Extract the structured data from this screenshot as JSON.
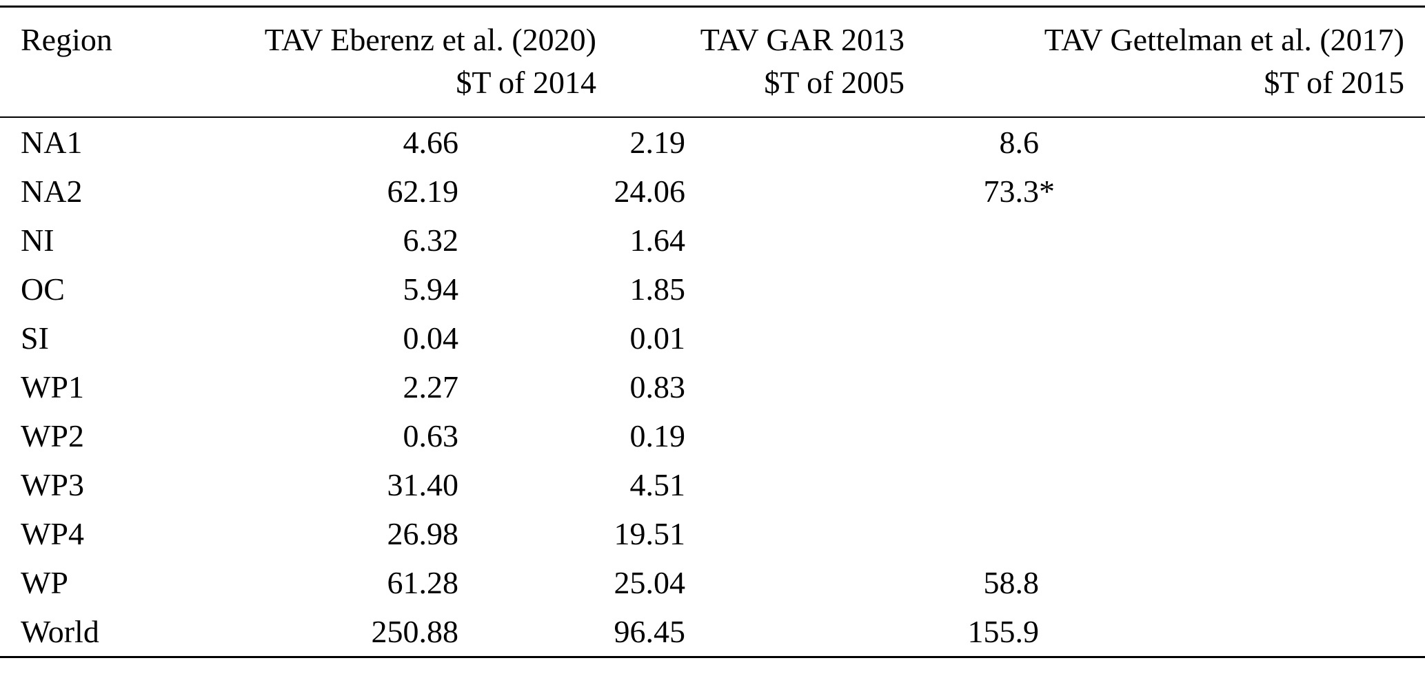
{
  "table": {
    "columns": [
      {
        "title": "Region",
        "unit": ""
      },
      {
        "title": "TAV Eberenz et al. (2020)",
        "unit": "$T of 2014"
      },
      {
        "title": "TAV GAR 2013",
        "unit": "$T of 2005"
      },
      {
        "title": "TAV Gettelman et al. (2017)",
        "unit": "$T of 2015"
      }
    ],
    "rows": [
      {
        "region": "NA1",
        "tav_eberenz": "4.66",
        "tav_gar": "2.19",
        "tav_gettelman": "8.6"
      },
      {
        "region": "NA2",
        "tav_eberenz": "62.19",
        "tav_gar": "24.06",
        "tav_gettelman": "73.3*"
      },
      {
        "region": "NI",
        "tav_eberenz": "6.32",
        "tav_gar": "1.64",
        "tav_gettelman": ""
      },
      {
        "region": "OC",
        "tav_eberenz": "5.94",
        "tav_gar": "1.85",
        "tav_gettelman": ""
      },
      {
        "region": "SI",
        "tav_eberenz": "0.04",
        "tav_gar": "0.01",
        "tav_gettelman": ""
      },
      {
        "region": "WP1",
        "tav_eberenz": "2.27",
        "tav_gar": "0.83",
        "tav_gettelman": ""
      },
      {
        "region": "WP2",
        "tav_eberenz": "0.63",
        "tav_gar": "0.19",
        "tav_gettelman": ""
      },
      {
        "region": "WP3",
        "tav_eberenz": "31.40",
        "tav_gar": "4.51",
        "tav_gettelman": ""
      },
      {
        "region": "WP4",
        "tav_eberenz": "26.98",
        "tav_gar": "19.51",
        "tav_gettelman": ""
      },
      {
        "region": "WP",
        "tav_eberenz": "61.28",
        "tav_gar": "25.04",
        "tav_gettelman": "58.8"
      },
      {
        "region": "World",
        "tav_eberenz": "250.88",
        "tav_gar": "96.45",
        "tav_gettelman": "155.9"
      }
    ]
  }
}
